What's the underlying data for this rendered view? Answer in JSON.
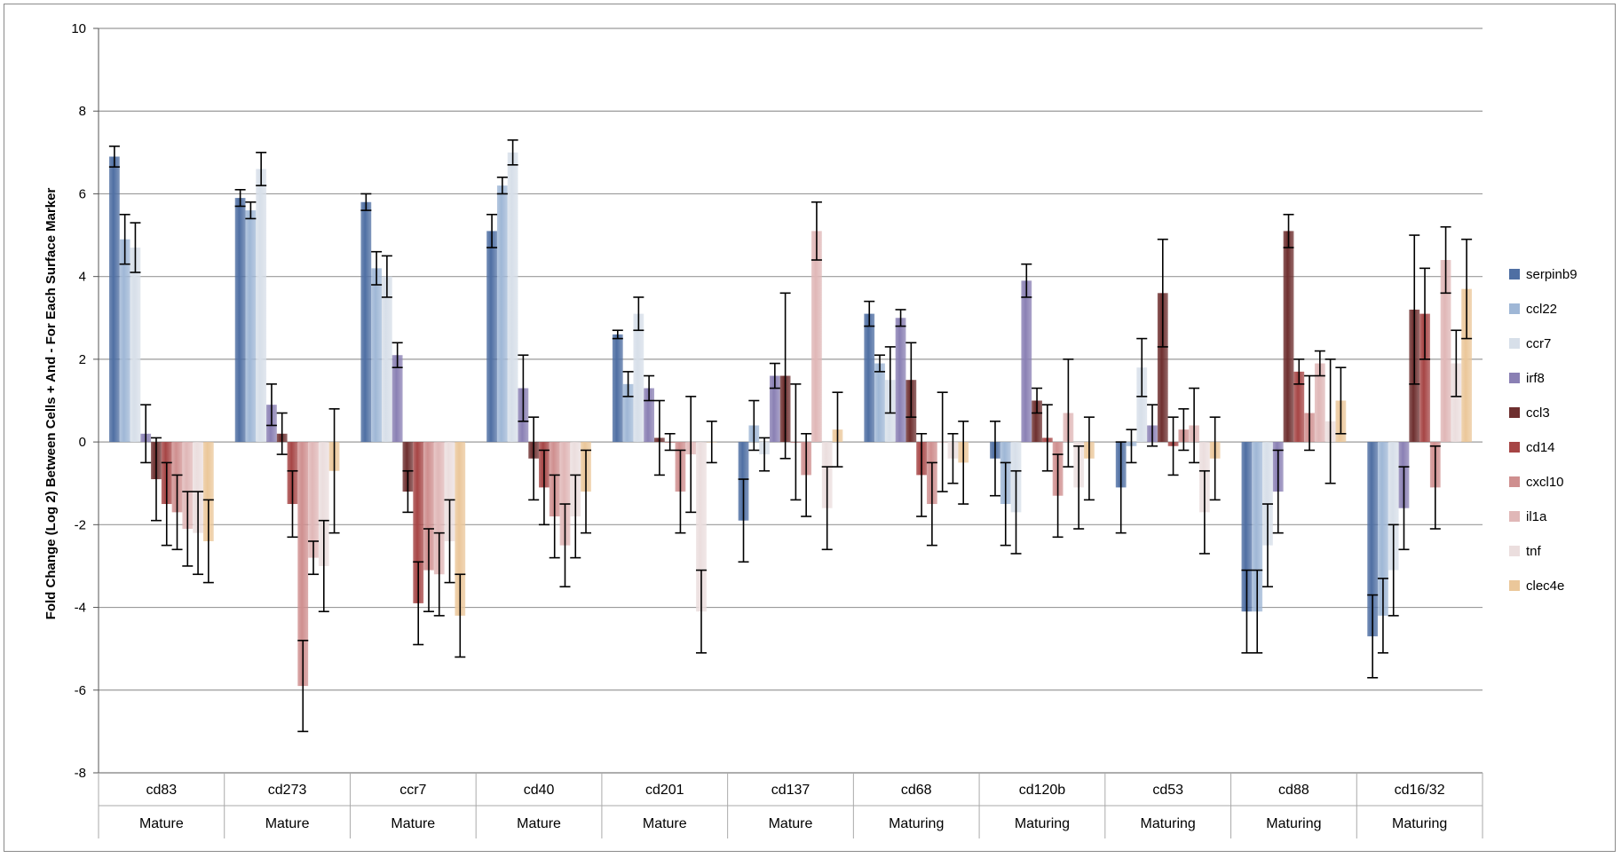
{
  "chart_data": {
    "type": "bar",
    "title": "",
    "xlabel": "",
    "ylabel": "Fold Change (Log 2) Between Cells + And - For Each Surface Marker",
    "ylim": [
      -8,
      10
    ],
    "yticks": [
      10,
      8,
      6,
      4,
      2,
      0,
      -2,
      -4,
      -6,
      -8
    ],
    "grid": true,
    "legend_position": "right",
    "categories": [
      "cd83",
      "cd273",
      "ccr7",
      "cd40",
      "cd201",
      "cd137",
      "cd68",
      "cd120b",
      "cd53",
      "cd88",
      "cd16/32"
    ],
    "category_groups": [
      "Mature",
      "Mature",
      "Mature",
      "Mature",
      "Mature",
      "Mature",
      "Maturing",
      "Maturing",
      "Maturing",
      "Maturing",
      "Maturing"
    ],
    "series": [
      {
        "name": "serpinb9",
        "color": "#4f6fa3",
        "values": [
          6.9,
          5.9,
          5.8,
          5.1,
          2.6,
          -1.9,
          3.1,
          -0.4,
          -1.1,
          -4.1,
          -4.7
        ],
        "errors": [
          0.25,
          0.2,
          0.2,
          0.4,
          0.1,
          1.0,
          0.3,
          0.9,
          1.1,
          1.0,
          1.0
        ]
      },
      {
        "name": "ccl22",
        "color": "#9fb7d6",
        "values": [
          4.9,
          5.6,
          4.2,
          6.2,
          1.4,
          0.4,
          1.9,
          -1.5,
          -0.1,
          -4.1,
          -4.2
        ],
        "errors": [
          0.6,
          0.2,
          0.4,
          0.2,
          0.3,
          0.6,
          0.2,
          1.0,
          0.4,
          1.0,
          0.9
        ]
      },
      {
        "name": "ccr7",
        "color": "#d7dfe9",
        "values": [
          4.7,
          6.6,
          4.0,
          7.0,
          3.1,
          -0.3,
          1.5,
          -1.7,
          1.8,
          -2.5,
          -3.1
        ],
        "errors": [
          0.6,
          0.4,
          0.5,
          0.3,
          0.4,
          0.4,
          0.8,
          1.0,
          0.7,
          1.0,
          1.1
        ]
      },
      {
        "name": "irf8",
        "color": "#8a80b4",
        "values": [
          0.2,
          0.9,
          2.1,
          1.3,
          1.3,
          1.6,
          3.0,
          3.9,
          0.4,
          -1.2,
          -1.6
        ],
        "errors": [
          0.7,
          0.5,
          0.3,
          0.8,
          0.3,
          0.3,
          0.2,
          0.4,
          0.5,
          1.0,
          1.0
        ]
      },
      {
        "name": "ccl3",
        "color": "#6e2f2f",
        "values": [
          -0.9,
          0.2,
          -1.2,
          -0.4,
          0.1,
          1.6,
          1.5,
          1.0,
          3.6,
          5.1,
          3.2
        ],
        "errors": [
          1.0,
          0.5,
          0.5,
          1.0,
          0.9,
          2.0,
          0.9,
          0.3,
          1.3,
          0.4,
          1.8
        ]
      },
      {
        "name": "cd14",
        "color": "#a64545",
        "values": [
          -1.5,
          -1.5,
          -3.9,
          -1.1,
          0.0,
          0.0,
          -0.8,
          0.1,
          -0.1,
          1.7,
          3.1
        ],
        "errors": [
          1.0,
          0.8,
          1.0,
          0.9,
          0.2,
          1.4,
          1.0,
          0.8,
          0.7,
          0.3,
          1.1
        ]
      },
      {
        "name": "cxcl10",
        "color": "#cf8f8f",
        "values": [
          -1.7,
          -5.9,
          -3.1,
          -1.8,
          -1.2,
          -0.8,
          -1.5,
          -1.3,
          0.3,
          0.7,
          -1.1
        ],
        "errors": [
          0.9,
          1.1,
          1.0,
          1.0,
          1.0,
          1.0,
          1.0,
          1.0,
          0.5,
          0.9,
          1.0
        ]
      },
      {
        "name": "il1a",
        "color": "#e0b7b7",
        "values": [
          -2.1,
          -2.8,
          -3.2,
          -2.5,
          -0.3,
          5.1,
          0.0,
          0.7,
          0.4,
          1.9,
          4.4
        ],
        "errors": [
          0.9,
          0.4,
          1.0,
          1.0,
          1.4,
          0.7,
          1.2,
          1.3,
          0.9,
          0.3,
          0.8
        ]
      },
      {
        "name": "tnf",
        "color": "#ebdede",
        "values": [
          -2.2,
          -3.0,
          -2.4,
          -1.8,
          -4.1,
          -1.6,
          -0.4,
          -1.1,
          -1.7,
          0.5,
          1.9
        ],
        "errors": [
          1.0,
          1.1,
          1.0,
          1.0,
          1.0,
          1.0,
          0.6,
          1.0,
          1.0,
          1.5,
          0.8
        ]
      },
      {
        "name": "clec4e",
        "color": "#ebc79a",
        "values": [
          -2.4,
          -0.7,
          -4.2,
          -1.2,
          0.0,
          0.3,
          -0.5,
          -0.4,
          -0.4,
          1.0,
          3.7
        ],
        "errors": [
          1.0,
          1.5,
          1.0,
          1.0,
          0.5,
          0.9,
          1.0,
          1.0,
          1.0,
          0.8,
          1.2
        ]
      }
    ]
  }
}
